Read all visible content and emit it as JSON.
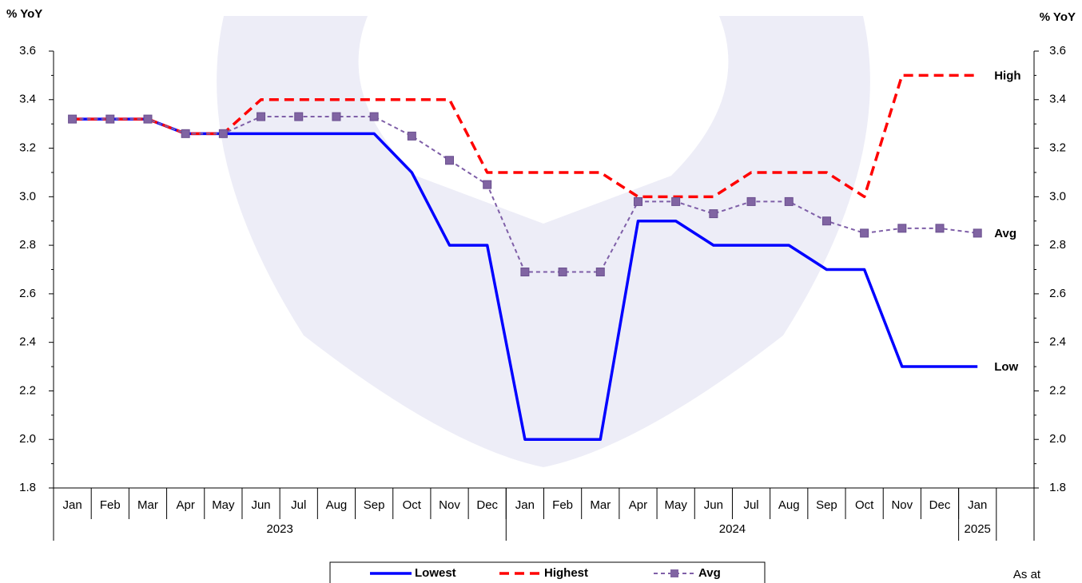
{
  "chart_data": {
    "type": "line",
    "y_label": "% YoY",
    "y2_label": "% YoY",
    "categories": [
      "Jan",
      "Feb",
      "Mar",
      "Apr",
      "May",
      "Jun",
      "Jul",
      "Aug",
      "Sep",
      "Oct",
      "Nov",
      "Dec",
      "Jan",
      "Feb",
      "Mar",
      "Apr",
      "May",
      "Jun",
      "Jul",
      "Aug",
      "Sep",
      "Oct",
      "Nov",
      "Dec",
      "Jan",
      null
    ],
    "year_groups": [
      "2023",
      "2024",
      "2025"
    ],
    "series": [
      {
        "name": "Lowest",
        "color": "#0000ff",
        "dash": "solid",
        "markers": false,
        "values": [
          3.32,
          3.32,
          3.32,
          3.26,
          3.26,
          3.26,
          3.26,
          3.26,
          3.26,
          3.1,
          2.8,
          2.8,
          2.0,
          2.0,
          2.0,
          2.9,
          2.9,
          2.8,
          2.8,
          2.8,
          2.7,
          2.7,
          2.3,
          2.3,
          2.3,
          null
        ]
      },
      {
        "name": "Highest",
        "color": "#ff0000",
        "dash": "dashed",
        "markers": false,
        "values": [
          3.32,
          3.32,
          3.32,
          3.26,
          3.26,
          3.4,
          3.4,
          3.4,
          3.4,
          3.4,
          3.4,
          3.1,
          3.1,
          3.1,
          3.1,
          3.0,
          3.0,
          3.0,
          3.1,
          3.1,
          3.1,
          3.0,
          3.5,
          3.5,
          3.5,
          null
        ]
      },
      {
        "name": "Avg",
        "color": "#7f5fa8",
        "dash": "dotted",
        "markers": true,
        "values": [
          3.32,
          3.32,
          3.32,
          3.26,
          3.26,
          3.33,
          3.33,
          3.33,
          3.33,
          3.25,
          3.15,
          3.05,
          2.69,
          2.69,
          2.69,
          2.98,
          2.98,
          2.93,
          2.98,
          2.98,
          2.9,
          2.85,
          2.87,
          2.87,
          2.85,
          null
        ]
      }
    ],
    "end_labels": [
      "Low",
      "High",
      "Avg"
    ],
    "ylim": [
      1.8,
      3.6
    ],
    "yticks": [
      {
        "value": 1.8,
        "label": "1.8"
      },
      {
        "value": 2.0,
        "label": "2.0"
      },
      {
        "value": 2.2,
        "label": "2.2"
      },
      {
        "value": 2.4,
        "label": "2.4"
      },
      {
        "value": 2.6,
        "label": "2.6"
      },
      {
        "value": 2.8,
        "label": "2.8"
      },
      {
        "value": 3.0,
        "label": "3.0"
      },
      {
        "value": 3.2,
        "label": "3.2"
      },
      {
        "value": 3.4,
        "label": "3.4"
      },
      {
        "value": 3.6,
        "label": "3.6"
      }
    ],
    "y2lim": [
      1.8,
      3.6
    ],
    "y2ticks": [
      {
        "value": 1.8,
        "label": "1.8"
      },
      {
        "value": 2.0,
        "label": "2.0"
      },
      {
        "value": 2.2,
        "label": "2.2"
      },
      {
        "value": 2.4,
        "label": "2.4"
      },
      {
        "value": 2.6,
        "label": "2.6"
      },
      {
        "value": 2.8,
        "label": "2.8"
      },
      {
        "value": 3.0,
        "label": "3.0"
      },
      {
        "value": 3.2,
        "label": "3.2"
      },
      {
        "value": 3.4,
        "label": "3.4"
      },
      {
        "value": 3.6,
        "label": "3.6"
      }
    ],
    "note": "As at"
  }
}
